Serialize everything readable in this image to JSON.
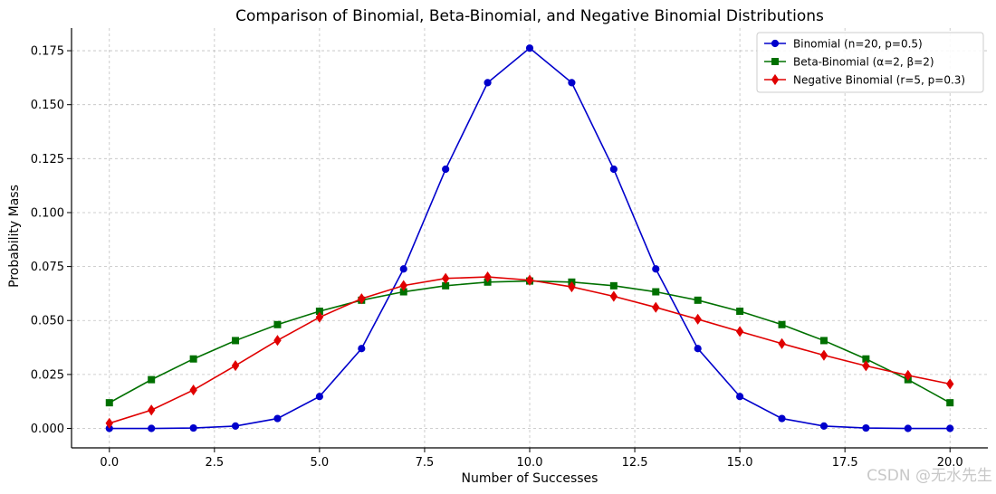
{
  "chart_data": {
    "type": "line",
    "title": "Comparison of Binomial, Beta-Binomial, and Negative Binomial Distributions",
    "xlabel": "Number of Successes",
    "ylabel": "Probability Mass",
    "xlim": [
      -0.9,
      20.9
    ],
    "ylim": [
      -0.009,
      0.1855
    ],
    "xticks": [
      0.0,
      2.5,
      5.0,
      7.5,
      10.0,
      12.5,
      15.0,
      17.5,
      20.0
    ],
    "xtick_labels": [
      "0.0",
      "2.5",
      "5.0",
      "7.5",
      "10.0",
      "12.5",
      "15.0",
      "17.5",
      "20.0"
    ],
    "yticks": [
      0.0,
      0.025,
      0.05,
      0.075,
      0.1,
      0.125,
      0.15,
      0.175
    ],
    "ytick_labels": [
      "0.000",
      "0.025",
      "0.050",
      "0.075",
      "0.100",
      "0.125",
      "0.150",
      "0.175"
    ],
    "grid": true,
    "legend_position": "top-right",
    "x": [
      0,
      1,
      2,
      3,
      4,
      5,
      6,
      7,
      8,
      9,
      10,
      11,
      12,
      13,
      14,
      15,
      16,
      17,
      18,
      19,
      20
    ],
    "series": [
      {
        "name": "Binomial (n=20, p=0.5)",
        "color": "#0000cc",
        "marker": "circle",
        "values": [
          0.0,
          0.0,
          0.0002,
          0.0011,
          0.0046,
          0.0148,
          0.037,
          0.0739,
          0.1201,
          0.1602,
          0.1762,
          0.1602,
          0.1201,
          0.0739,
          0.037,
          0.0148,
          0.0046,
          0.0011,
          0.0002,
          0.0,
          0.0
        ]
      },
      {
        "name": "Beta-Binomial (α=2, β=2)",
        "color": "#007000",
        "marker": "square",
        "values": [
          0.0119,
          0.0226,
          0.0322,
          0.0407,
          0.0481,
          0.0543,
          0.0594,
          0.0633,
          0.0661,
          0.0678,
          0.0683,
          0.0678,
          0.0661,
          0.0633,
          0.0594,
          0.0543,
          0.0481,
          0.0407,
          0.0322,
          0.0226,
          0.0119
        ]
      },
      {
        "name": "Negative Binomial (r=5, p=0.3)",
        "color": "#e00000",
        "marker": "diamond",
        "values": [
          0.0024,
          0.0085,
          0.0178,
          0.0291,
          0.0408,
          0.0515,
          0.0601,
          0.0662,
          0.0695,
          0.0702,
          0.0687,
          0.0656,
          0.0612,
          0.0561,
          0.0506,
          0.0449,
          0.0393,
          0.0339,
          0.029,
          0.0246,
          0.0206
        ]
      }
    ]
  },
  "watermark": "CSDN @无水先生"
}
